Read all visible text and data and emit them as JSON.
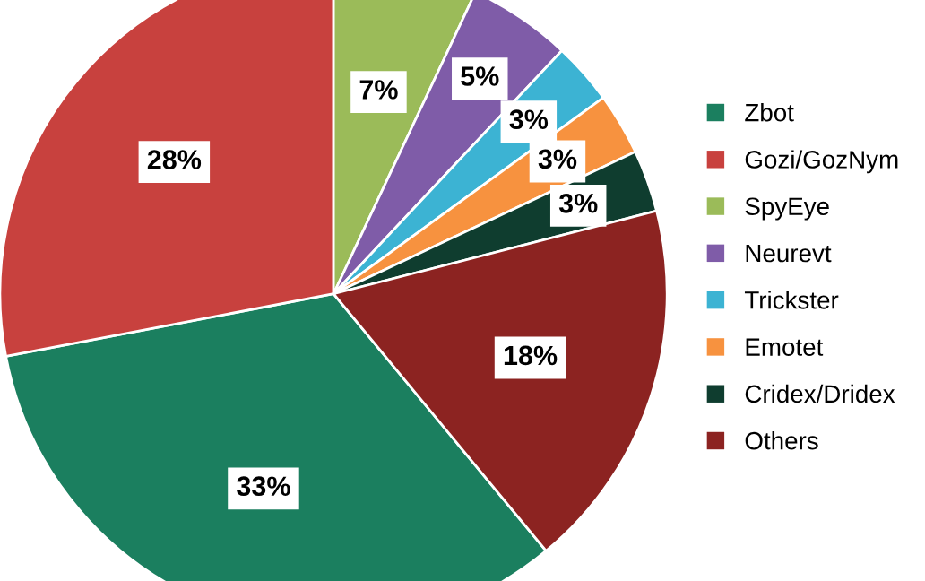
{
  "chart_data": {
    "type": "pie",
    "categories": [
      "Zbot",
      "Gozi/GozNym",
      "SpyEye",
      "Neurevt",
      "Trickster",
      "Emotet",
      "Cridex/Dridex",
      "Others"
    ],
    "values": [
      33,
      28,
      7,
      5,
      3,
      3,
      3,
      18
    ],
    "colors": [
      "#1b7f5f",
      "#c8413e",
      "#9bbb59",
      "#7f5ca8",
      "#3cb3d3",
      "#f7923f",
      "#0f3d2f",
      "#8c2321"
    ],
    "value_labels": [
      "33%",
      "28%",
      "7%",
      "5%",
      "3%",
      "3%",
      "3%",
      "18%"
    ],
    "legend": "right"
  }
}
